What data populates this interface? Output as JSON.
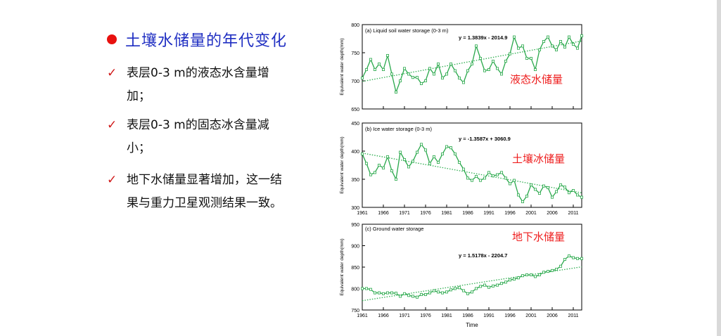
{
  "slide": {
    "title": "土壤水储量的年代变化",
    "bullets": [
      {
        "mark": "✓",
        "lines": [
          "表层0-3 m的液态水含量增",
          "加；"
        ]
      },
      {
        "mark": "✓",
        "lines": [
          "表层0-3 m的固态冰含量减",
          "小；"
        ]
      },
      {
        "mark": "✓",
        "lines": [
          "地下水储量显著增加，这一结",
          "果与重力卫星观测结果一致。"
        ]
      }
    ]
  },
  "chart_data": [
    {
      "type": "line",
      "panel_title": "(a) Liquid soil water storage (0-3 m)",
      "overlay_label": "液态水储量",
      "trend_label": "y = 1.3839x - 2014.9",
      "trend": {
        "slope": 1.3839,
        "intercept": -2014.9
      },
      "ylabel": "Equivalent water depth(mm)",
      "ylim": [
        650,
        800
      ],
      "yticks": [
        650,
        700,
        750,
        800
      ],
      "x": [
        1961,
        1962,
        1963,
        1964,
        1965,
        1966,
        1967,
        1968,
        1969,
        1970,
        1971,
        1972,
        1973,
        1974,
        1975,
        1976,
        1977,
        1978,
        1979,
        1980,
        1981,
        1982,
        1983,
        1984,
        1985,
        1986,
        1987,
        1988,
        1989,
        1990,
        1991,
        1992,
        1993,
        1994,
        1995,
        1996,
        1997,
        1998,
        1999,
        2000,
        2001,
        2002,
        2003,
        2004,
        2005,
        2006,
        2007,
        2008,
        2009,
        2010,
        2011,
        2012,
        2013
      ],
      "y": [
        705,
        720,
        738,
        720,
        730,
        720,
        745,
        712,
        680,
        700,
        722,
        712,
        706,
        706,
        695,
        700,
        722,
        712,
        730,
        705,
        712,
        730,
        718,
        705,
        697,
        718,
        730,
        762,
        740,
        718,
        720,
        735,
        722,
        712,
        735,
        748,
        778,
        758,
        762,
        740,
        740,
        720,
        755,
        770,
        778,
        762,
        755,
        770,
        760,
        778,
        765,
        758,
        780
      ]
    },
    {
      "type": "line",
      "panel_title": "(b) Ice water storage (0-3 m)",
      "overlay_label": "土壤冰储量",
      "trend_label": "y = -1.3587x + 3060.9",
      "trend": {
        "slope": -1.3587,
        "intercept": 3060.9
      },
      "ylabel": "Equivalent water depth(mm)",
      "ylim": [
        300,
        450
      ],
      "yticks": [
        300,
        350,
        400,
        450
      ],
      "xticks": [
        1961,
        1966,
        1971,
        1976,
        1981,
        1986,
        1991,
        1996,
        2001,
        2006,
        2011
      ],
      "x": [
        1961,
        1962,
        1963,
        1964,
        1965,
        1966,
        1967,
        1968,
        1969,
        1970,
        1971,
        1972,
        1973,
        1974,
        1975,
        1976,
        1977,
        1978,
        1979,
        1980,
        1981,
        1982,
        1983,
        1984,
        1985,
        1986,
        1987,
        1988,
        1989,
        1990,
        1991,
        1992,
        1993,
        1994,
        1995,
        1996,
        1997,
        1998,
        1999,
        2000,
        2001,
        2002,
        2003,
        2004,
        2005,
        2006,
        2007,
        2008,
        2009,
        2010,
        2011,
        2012,
        2013
      ],
      "y": [
        395,
        378,
        358,
        362,
        375,
        370,
        390,
        365,
        350,
        398,
        385,
        372,
        382,
        398,
        412,
        402,
        378,
        390,
        380,
        395,
        408,
        406,
        395,
        380,
        368,
        352,
        348,
        355,
        348,
        352,
        362,
        356,
        358,
        362,
        352,
        342,
        348,
        322,
        310,
        320,
        340,
        332,
        325,
        338,
        335,
        318,
        328,
        340,
        336,
        326,
        330,
        322,
        318
      ]
    },
    {
      "type": "line",
      "panel_title": "(c) Ground water storage",
      "overlay_label": "地下水储量",
      "trend_label": "y = 1.5178x - 2204.7",
      "trend": {
        "slope": 1.5178,
        "intercept": -2204.7
      },
      "ylabel": "Equivalent water depth(mm)",
      "xlabel": "Time",
      "ylim": [
        750,
        950
      ],
      "yticks": [
        750,
        800,
        850,
        900,
        950
      ],
      "xticks": [
        1961,
        1966,
        1971,
        1976,
        1981,
        1986,
        1991,
        1996,
        2001,
        2006,
        2011
      ],
      "x": [
        1961,
        1962,
        1963,
        1964,
        1965,
        1966,
        1967,
        1968,
        1969,
        1970,
        1971,
        1972,
        1973,
        1974,
        1975,
        1976,
        1977,
        1978,
        1979,
        1980,
        1981,
        1982,
        1983,
        1984,
        1985,
        1986,
        1987,
        1988,
        1989,
        1990,
        1991,
        1992,
        1993,
        1994,
        1995,
        1996,
        1997,
        1998,
        1999,
        2000,
        2001,
        2002,
        2003,
        2004,
        2005,
        2006,
        2007,
        2008,
        2009,
        2010,
        2011,
        2012,
        2013
      ],
      "y": [
        800,
        800,
        798,
        790,
        790,
        788,
        790,
        790,
        789,
        782,
        788,
        784,
        782,
        780,
        786,
        786,
        790,
        795,
        792,
        790,
        792,
        797,
        800,
        802,
        795,
        788,
        792,
        800,
        805,
        808,
        803,
        806,
        808,
        812,
        815,
        820,
        822,
        825,
        830,
        832,
        832,
        828,
        832,
        838,
        840,
        842,
        845,
        852,
        868,
        876,
        872,
        870,
        870
      ]
    }
  ],
  "colors": {
    "series": "#29a84b",
    "trend": "#2fae50",
    "overlay": "#ee1d1d",
    "title": "#1f2ec2",
    "dot": "#e8110f"
  }
}
